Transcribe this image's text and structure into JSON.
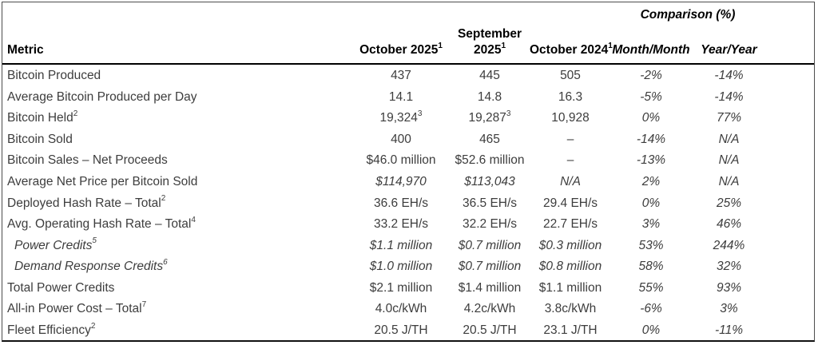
{
  "colors": {
    "header_text": "#000000",
    "body_text": "#3d3d3d",
    "border": "#4d4d4d"
  },
  "header": {
    "comparison": "Comparison (%)",
    "metric": "Metric",
    "col_oct2025": "October 2025",
    "col_oct2025_sup": "1",
    "col_sep2025_line1": "September",
    "col_sep2025_line2": "2025",
    "col_sep2025_sup": "1",
    "col_oct2024": "October 2024",
    "col_oct2024_sup": "1",
    "col_month_month": "Month/Month",
    "col_year_year": "Year/Year"
  },
  "rows": [
    {
      "metric": "Bitcoin Produced",
      "oct2025": "437",
      "sep2025": "445",
      "oct2024": "505",
      "month_month": "-2%",
      "year_year": "-14%",
      "style": ""
    },
    {
      "metric": "Average Bitcoin Produced per Day",
      "oct2025": "14.1",
      "sep2025": "14.8",
      "oct2024": "16.3",
      "month_month": "-5%",
      "year_year": "-14%",
      "style": ""
    },
    {
      "metric": "Bitcoin Held",
      "metric_sup": "2",
      "oct2025": "19,324",
      "oct2025_sup": "3",
      "sep2025": "19,287",
      "sep2025_sup": "3",
      "oct2024": "10,928",
      "month_month": "0%",
      "year_year": "77%",
      "style": ""
    },
    {
      "metric": "Bitcoin Sold",
      "oct2025": "400",
      "sep2025": "465",
      "oct2024": "–",
      "month_month": "-14%",
      "year_year": "N/A",
      "style": ""
    },
    {
      "metric": "Bitcoin Sales – Net Proceeds",
      "oct2025": "$46.0 million",
      "sep2025": "$52.6 million",
      "oct2024": "–",
      "month_month": "-13%",
      "year_year": "N/A",
      "style": ""
    },
    {
      "metric": "Average Net Price per Bitcoin Sold",
      "oct2025": "$114,970",
      "sep2025": "$113,043",
      "oct2024": "N/A",
      "month_month": "2%",
      "year_year": "N/A",
      "style": "italic-values"
    },
    {
      "metric": "Deployed Hash Rate – Total",
      "metric_sup": "2",
      "oct2025": "36.6 EH/s",
      "sep2025": "36.5 EH/s",
      "oct2024": "29.4 EH/s",
      "month_month": "0%",
      "year_year": "25%",
      "style": ""
    },
    {
      "metric": "Avg. Operating Hash Rate – Total",
      "metric_sup": "4",
      "oct2025": "33.2 EH/s",
      "sep2025": "32.2 EH/s",
      "oct2024": "22.7 EH/s",
      "month_month": "3%",
      "year_year": "46%",
      "style": ""
    },
    {
      "metric": "Power Credits",
      "metric_sup": "5",
      "oct2025": "$1.1 million",
      "sep2025": "$0.7 million",
      "oct2024": "$0.3 million",
      "month_month": "53%",
      "year_year": "244%",
      "style": "indent-italic"
    },
    {
      "metric": "Demand Response Credits",
      "metric_sup": "6",
      "oct2025": "$1.0 million",
      "sep2025": "$0.7 million",
      "oct2024": "$0.8 million",
      "month_month": "58%",
      "year_year": "32%",
      "style": "indent-italic"
    },
    {
      "metric": "Total Power Credits",
      "oct2025": "$2.1 million",
      "sep2025": "$1.4 million",
      "oct2024": "$1.1 million",
      "month_month": "55%",
      "year_year": "93%",
      "style": ""
    },
    {
      "metric": "All-in Power Cost – Total",
      "metric_sup": "7",
      "oct2025": "4.0c/kWh",
      "sep2025": "4.2c/kWh",
      "oct2024": "3.8c/kWh",
      "month_month": "-6%",
      "year_year": "3%",
      "style": ""
    },
    {
      "metric": "Fleet Efficiency",
      "metric_sup": "2",
      "oct2025": "20.5 J/TH",
      "sep2025": "20.5 J/TH",
      "oct2024": "23.1 J/TH",
      "month_month": "0%",
      "year_year": "-11%",
      "style": ""
    }
  ]
}
